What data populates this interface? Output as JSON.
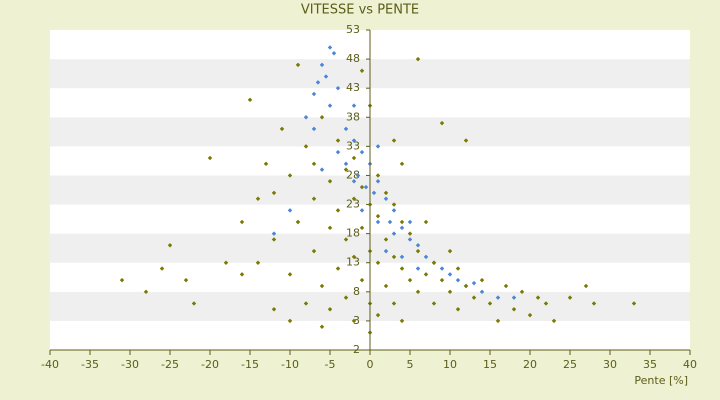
{
  "chart_data": {
    "type": "scatter",
    "title": "VITESSE vs PENTE",
    "x_label": "Pente [%]",
    "xlim": [
      -40,
      40
    ],
    "xticks": [
      -40,
      -35,
      -30,
      -25,
      -20,
      -15,
      -10,
      -5,
      0,
      5,
      10,
      15,
      20,
      25,
      30,
      35,
      40
    ],
    "ylim": [
      -2,
      53
    ],
    "yticks": [
      -2,
      3,
      8,
      13,
      18,
      23,
      28,
      33,
      38,
      43,
      48,
      53
    ],
    "grid": true,
    "series": [
      {
        "color": "#4a86d8",
        "x": [
          -5,
          -4.5,
          -6,
          -5.5,
          -7,
          -6.5,
          -4,
          -5,
          -8,
          -3,
          -2,
          -1,
          0,
          -1.5,
          1,
          0.5,
          2,
          -0.5,
          3,
          2.5,
          4,
          5,
          6,
          7,
          8,
          9,
          10,
          11,
          12,
          14,
          16,
          18,
          -3,
          -2,
          1,
          3,
          -9,
          -12,
          -10,
          -1,
          4,
          6,
          2,
          13,
          -6,
          -4,
          -2,
          1,
          -7,
          5
        ],
        "values": [
          50,
          49,
          47,
          45,
          42,
          44,
          43,
          40,
          38,
          36,
          34,
          32,
          30,
          28,
          27,
          25,
          24,
          26,
          22,
          20,
          19,
          17,
          16,
          14,
          13,
          12,
          11,
          10,
          9,
          8,
          7,
          7,
          30,
          27,
          20,
          18,
          20,
          18,
          22,
          22,
          14,
          12,
          15,
          9.5,
          29,
          32,
          40,
          33,
          36,
          20
        ]
      },
      {
        "color": "#7a7a00",
        "x": [
          -31,
          -26,
          -25,
          -23,
          -22,
          -20,
          -18,
          -16,
          -15,
          -14,
          -13,
          -12,
          -12,
          -11,
          -10,
          -10,
          -9,
          -9,
          -8,
          -8,
          -7,
          -7,
          -6,
          -6,
          -5,
          -5,
          -5,
          -4,
          -4,
          -4,
          -3,
          -3,
          -3,
          -2,
          -2,
          -2,
          -2,
          -1,
          -1,
          -1,
          -1,
          0,
          0,
          0,
          0,
          0,
          1,
          1,
          1,
          1,
          2,
          2,
          2,
          3,
          3,
          3,
          4,
          4,
          4,
          5,
          5,
          6,
          6,
          6,
          7,
          7,
          8,
          8,
          9,
          9,
          10,
          11,
          11,
          12,
          12,
          13,
          14,
          15,
          16,
          17,
          18,
          19,
          20,
          21,
          22,
          23,
          25,
          27,
          28,
          33,
          -28,
          -14,
          -16,
          -6,
          -10,
          -7,
          3,
          4,
          10,
          -12
        ],
        "values": [
          10,
          12,
          16,
          10,
          6,
          31,
          13,
          20,
          41,
          24,
          30,
          5,
          17,
          36,
          28,
          11,
          47,
          20,
          33,
          6,
          24,
          15,
          38,
          9,
          27,
          19,
          5,
          34,
          22,
          12,
          29,
          17,
          7,
          31,
          24,
          14,
          3,
          46,
          26,
          19,
          10,
          40,
          23,
          15,
          6,
          1,
          28,
          21,
          13,
          4,
          25,
          17,
          9,
          23,
          14,
          6,
          20,
          12,
          3,
          18,
          10,
          48,
          15,
          8,
          20,
          11,
          13,
          6,
          37,
          10,
          8,
          12,
          5,
          34,
          9,
          7,
          10,
          6,
          3,
          9,
          5,
          8,
          4,
          7,
          6,
          3,
          7,
          9,
          6,
          6,
          8,
          13,
          11,
          2,
          3,
          30,
          34,
          30,
          15,
          25
        ]
      }
    ]
  }
}
